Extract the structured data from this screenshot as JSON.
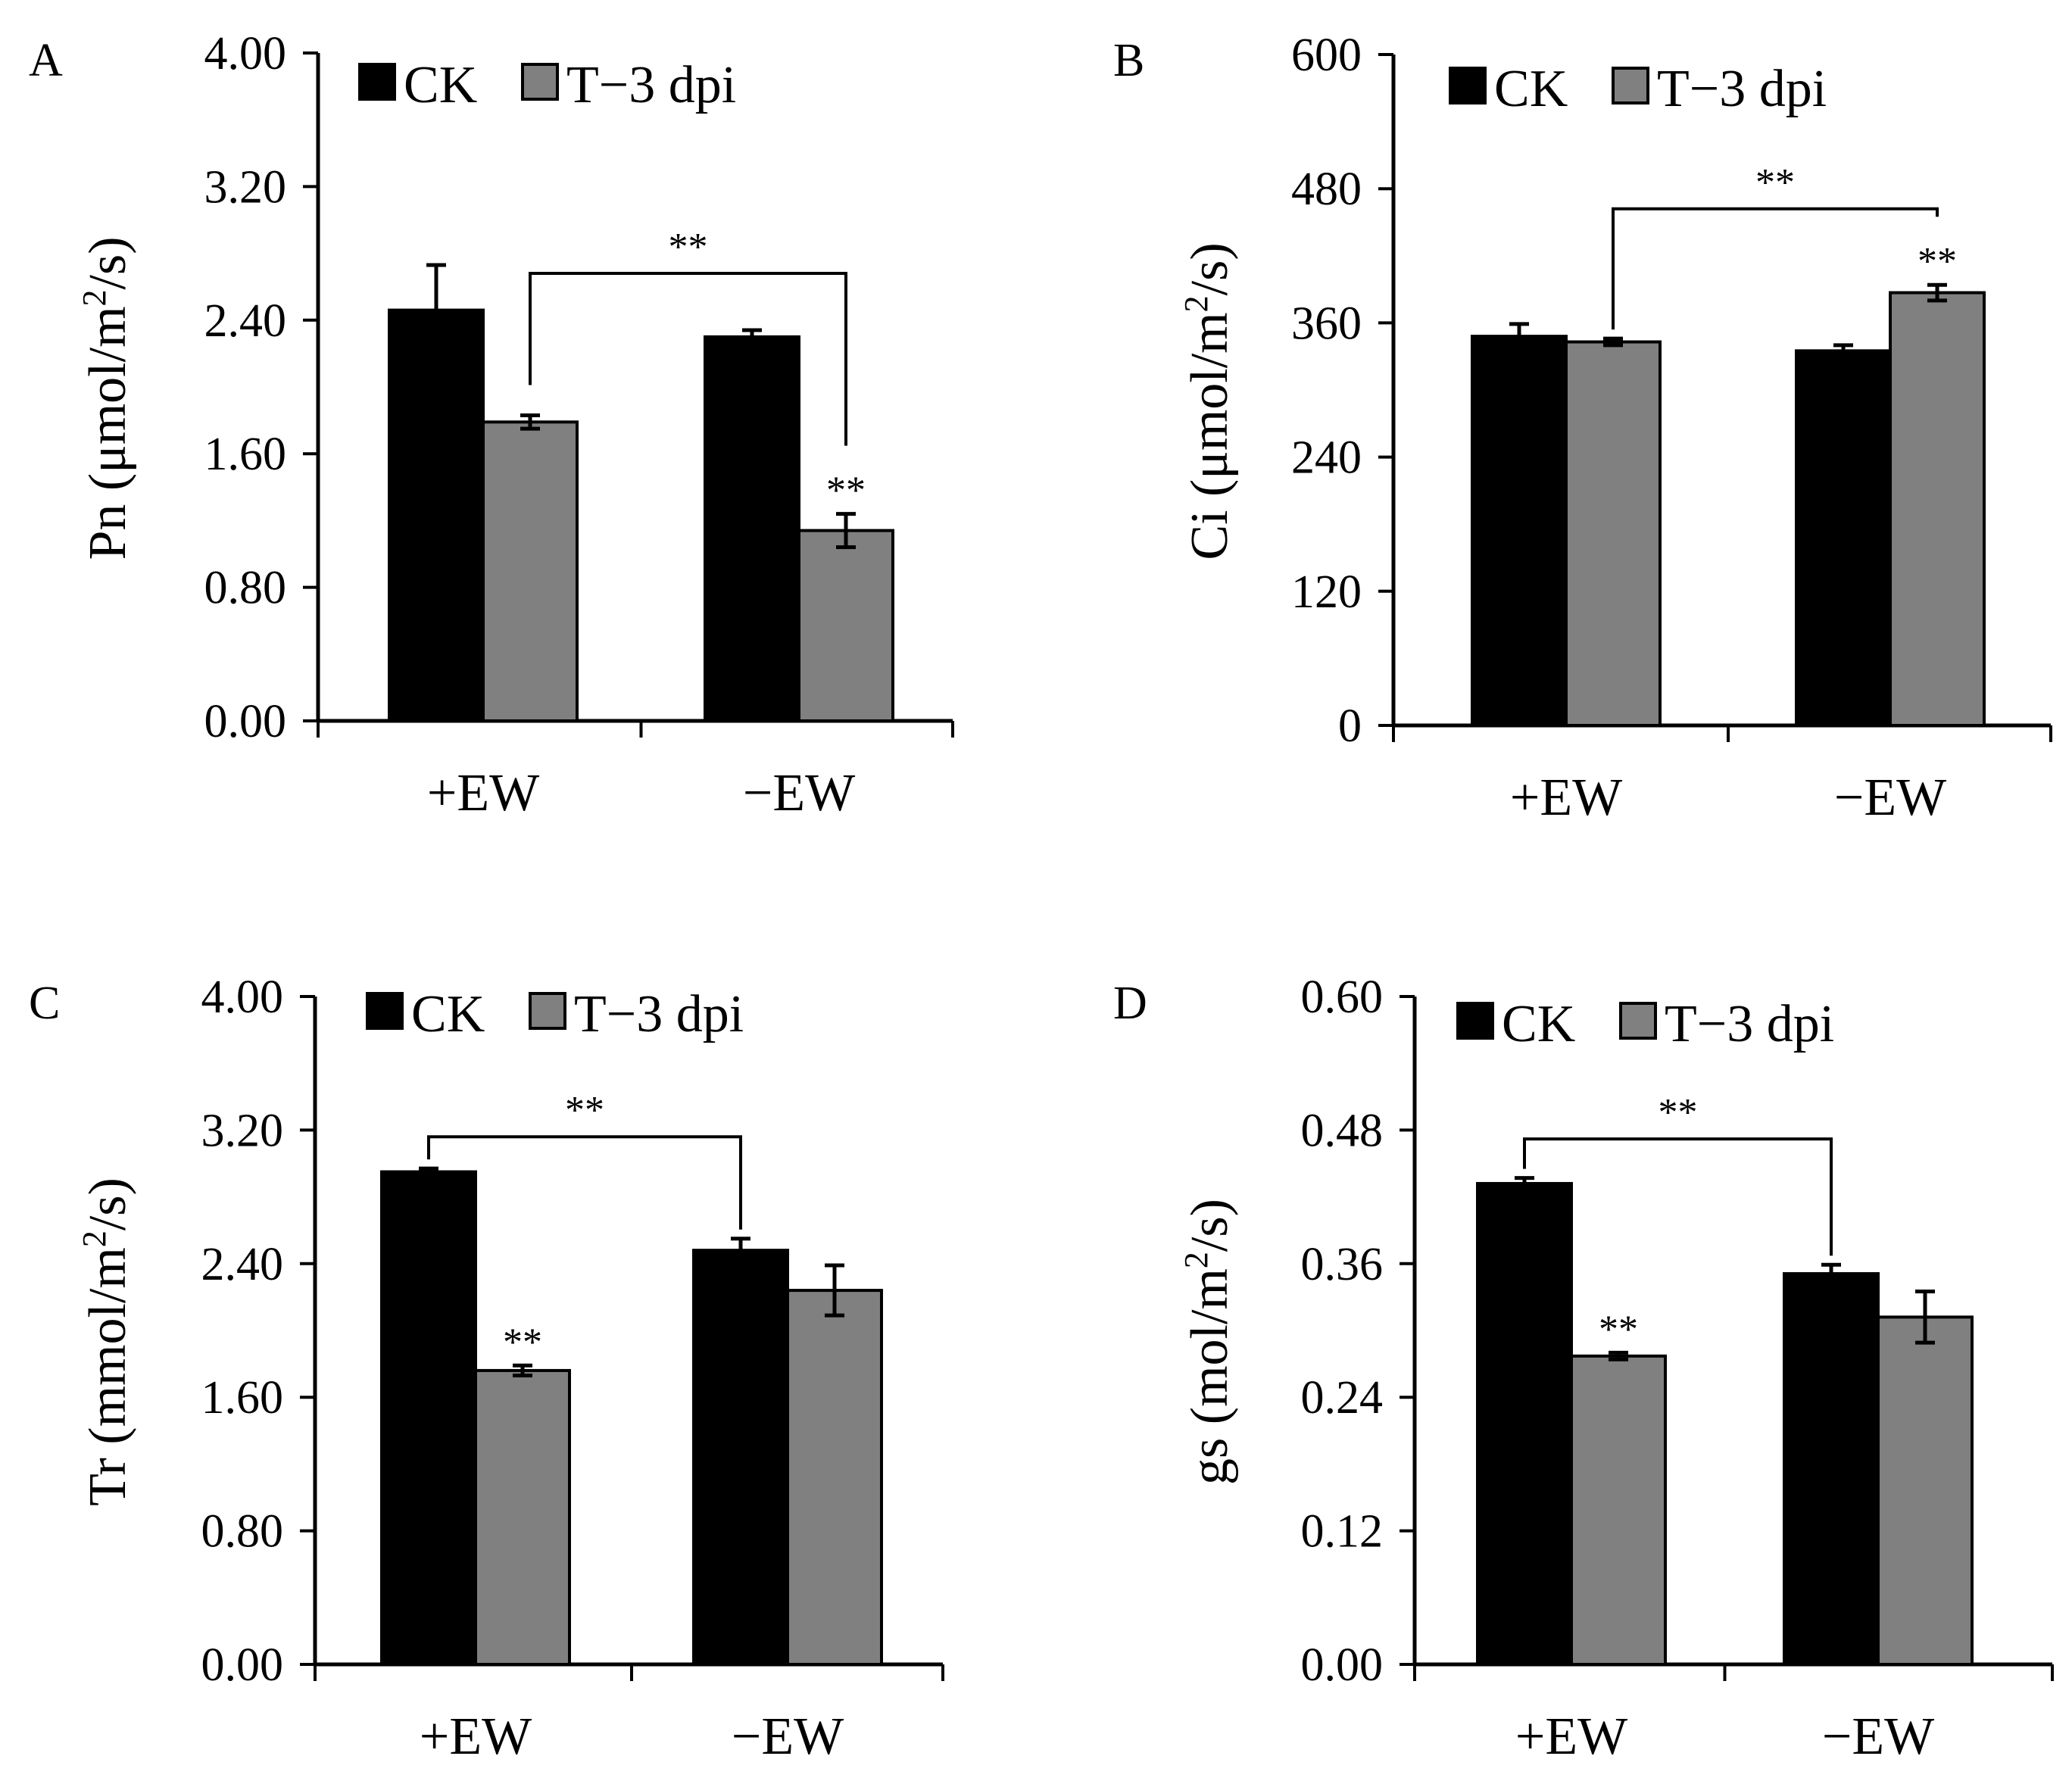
{
  "chart_data": [
    {
      "type": "bar",
      "panel": "A",
      "ylabel_prefix": "Pn (μmol/m",
      "ylabel_sup": "2",
      "ylabel_suffix": "/s)",
      "ylim": [
        0,
        4
      ],
      "yticks": [
        "0.00",
        "0.80",
        "1.60",
        "2.40",
        "3.20",
        "4.00"
      ],
      "categories": [
        "+EW",
        "−EW"
      ],
      "series": [
        {
          "name": "CK",
          "color": "#000000",
          "values": [
            2.46,
            2.3
          ],
          "errors": [
            0.27,
            0.04
          ]
        },
        {
          "name": "T−3 dpi",
          "color": "#808080",
          "values": [
            1.79,
            1.14
          ],
          "errors": [
            0.04,
            0.1
          ]
        }
      ],
      "annotations": [
        {
          "text": "**",
          "category": 1,
          "series": 1
        }
      ],
      "bracket": {
        "text": "**",
        "from": {
          "category": 0,
          "series": 1
        },
        "to": {
          "category": 1,
          "series": 1
        },
        "level": 2.68
      }
    },
    {
      "type": "bar",
      "panel": "B",
      "ylabel_prefix": "Ci (μmol/m",
      "ylabel_sup": "2",
      "ylabel_suffix": "/s)",
      "ylim": [
        0,
        600
      ],
      "yticks": [
        "0",
        "120",
        "240",
        "360",
        "480",
        "600"
      ],
      "categories": [
        "+EW",
        "−EW"
      ],
      "series": [
        {
          "name": "CK",
          "color": "#000000",
          "values": [
            348,
            335
          ],
          "errors": [
            11,
            5
          ]
        },
        {
          "name": "T−3 dpi",
          "color": "#808080",
          "values": [
            343,
            387
          ],
          "errors": [
            3,
            7
          ]
        }
      ],
      "annotations": [
        {
          "text": "**",
          "category": 1,
          "series": 1
        }
      ],
      "bracket": {
        "text": "**",
        "from": {
          "category": 0,
          "series": 1
        },
        "to": {
          "category": 1,
          "series": 1
        },
        "level": 462
      }
    },
    {
      "type": "bar",
      "panel": "C",
      "ylabel_prefix": "Tr (mmol/m",
      "ylabel_sup": "2",
      "ylabel_suffix": "/s)",
      "ylim": [
        0,
        4
      ],
      "yticks": [
        "0.00",
        "0.80",
        "1.60",
        "2.40",
        "3.20",
        "4.00"
      ],
      "categories": [
        "+EW",
        "−EW"
      ],
      "series": [
        {
          "name": "CK",
          "color": "#000000",
          "values": [
            2.95,
            2.48
          ],
          "errors": [
            0.02,
            0.07
          ]
        },
        {
          "name": "T−3 dpi",
          "color": "#808080",
          "values": [
            1.76,
            2.24
          ],
          "errors": [
            0.03,
            0.15
          ]
        }
      ],
      "annotations": [
        {
          "text": "**",
          "category": 0,
          "series": 1
        }
      ],
      "bracket": {
        "text": "**",
        "from": {
          "category": 0,
          "series": 0
        },
        "to": {
          "category": 1,
          "series": 0
        },
        "level": 3.16
      }
    },
    {
      "type": "bar",
      "panel": "D",
      "ylabel_prefix": "gs (mol/m",
      "ylabel_sup": "2",
      "ylabel_suffix": "/s)",
      "ylim": [
        0,
        0.6
      ],
      "yticks": [
        "0.00",
        "0.12",
        "0.24",
        "0.36",
        "0.48",
        "0.60"
      ],
      "categories": [
        "+EW",
        "−EW"
      ],
      "series": [
        {
          "name": "CK",
          "color": "#000000",
          "values": [
            0.432,
            0.351
          ],
          "errors": [
            0.005,
            0.008
          ]
        },
        {
          "name": "T−3 dpi",
          "color": "#808080",
          "values": [
            0.277,
            0.312
          ],
          "errors": [
            0.003,
            0.023
          ]
        }
      ],
      "annotations": [
        {
          "text": "**",
          "category": 0,
          "series": 1
        }
      ],
      "bracket": {
        "text": "**",
        "from": {
          "category": 0,
          "series": 0
        },
        "to": {
          "category": 1,
          "series": 0
        },
        "level": 0.472
      }
    }
  ]
}
